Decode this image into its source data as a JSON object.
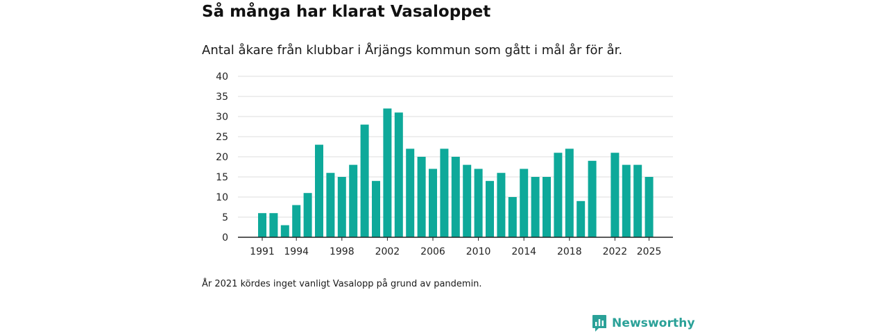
{
  "title": "Så många har klarat Vasaloppet",
  "subtitle": "Antal åkare från klubbar i Årjängs kommun som gått i mål år för år.",
  "note": "År 2021 kördes inget vanligt Vasalopp på grund av pandemin.",
  "brand": {
    "name": "Newsworthy",
    "icon": "newsworthy-logo-icon",
    "color": "#2aa198"
  },
  "chart_data": {
    "type": "bar",
    "title": "Så många har klarat Vasaloppet",
    "subtitle": "Antal åkare från klubbar i Årjängs kommun som gått i mål år för år.",
    "xlabel": "",
    "ylabel": "",
    "ylim": [
      0,
      40
    ],
    "yticks": [
      0,
      5,
      10,
      15,
      20,
      25,
      30,
      35,
      40
    ],
    "xticks": [
      1991,
      1994,
      1998,
      2002,
      2006,
      2010,
      2014,
      2018,
      2022,
      2025
    ],
    "grid": true,
    "bar_color": "#0ea99a",
    "categories": [
      1991,
      1992,
      1993,
      1994,
      1995,
      1996,
      1997,
      1998,
      1999,
      2000,
      2001,
      2002,
      2003,
      2004,
      2005,
      2006,
      2007,
      2008,
      2009,
      2010,
      2011,
      2012,
      2013,
      2014,
      2015,
      2016,
      2017,
      2018,
      2019,
      2020,
      2021,
      2022,
      2023,
      2024,
      2025
    ],
    "values": [
      6,
      6,
      3,
      8,
      11,
      23,
      16,
      15,
      18,
      28,
      14,
      32,
      31,
      22,
      20,
      17,
      22,
      20,
      18,
      17,
      14,
      16,
      10,
      17,
      15,
      15,
      21,
      22,
      9,
      19,
      null,
      21,
      18,
      18,
      15
    ]
  }
}
